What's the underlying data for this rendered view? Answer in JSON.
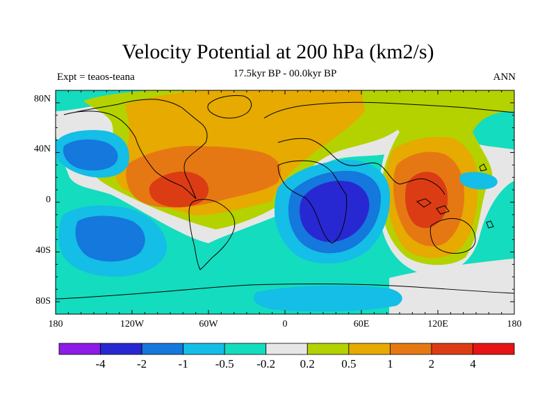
{
  "header": {
    "title": "Velocity Potential at 200 hPa (km2/s)",
    "left_label": "Expt = teaos-teana",
    "center_label": "17.5kyr BP - 00.0kyr BP",
    "right_label": "ANN"
  },
  "axes": {
    "x_ticks": [
      "180",
      "120W",
      "60W",
      "0",
      "60E",
      "120E",
      "180"
    ],
    "y_ticks": [
      "80N",
      "40N",
      "0",
      "40S",
      "80S"
    ]
  },
  "colorbar": {
    "colors": [
      "#8c1ce6",
      "#2828d2",
      "#1478dc",
      "#14bee6",
      "#14dcbe",
      "#e6e6e6",
      "#b4d200",
      "#e6aa00",
      "#e67814",
      "#dc3c14",
      "#e61414"
    ],
    "labels": [
      "-4",
      "-2",
      "-1",
      "-0.5",
      "-0.2",
      "0.2",
      "0.5",
      "1",
      "2",
      "4"
    ]
  },
  "palette": {
    "strong_negative": "#2828d2",
    "negative": "#1478dc",
    "weak_negative": "#14bee6",
    "slight_negative": "#14dcbe",
    "neutral": "#e6e6e6",
    "slight_positive": "#b4d200",
    "weak_positive": "#e6aa00",
    "positive": "#e67814",
    "strong_positive": "#dc3c14"
  }
}
